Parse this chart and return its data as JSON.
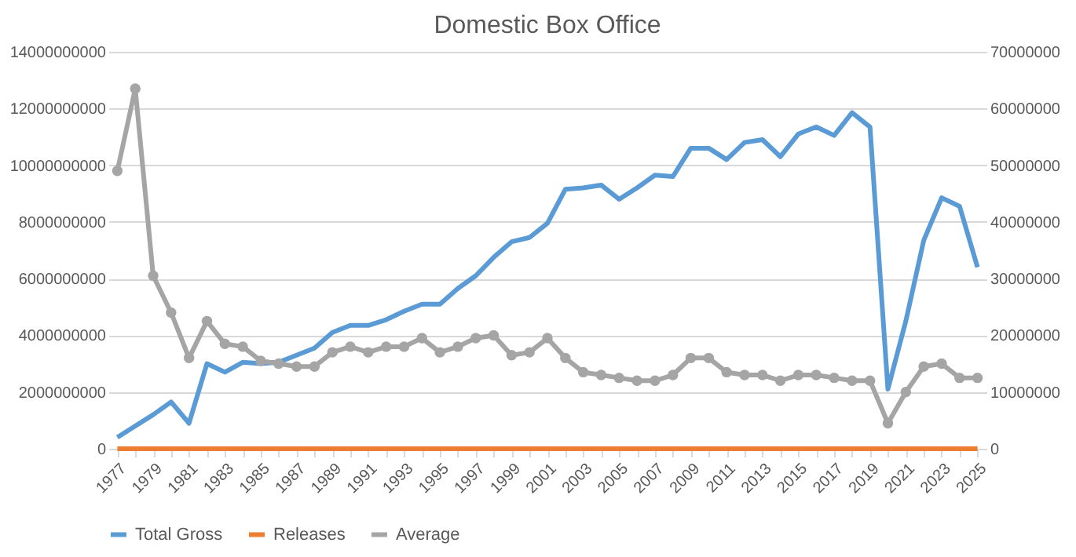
{
  "chart_data": {
    "type": "line",
    "title": "Domestic Box  Office",
    "categories": [
      "1977",
      null,
      "1979",
      null,
      "1981",
      null,
      "1983",
      null,
      "1985",
      null,
      "1987",
      null,
      "1989",
      null,
      "1991",
      null,
      "1993",
      null,
      "1995",
      null,
      "1997",
      null,
      "1999",
      null,
      "2001",
      null,
      "2003",
      null,
      "2005",
      null,
      "2007",
      null,
      "2009",
      null,
      "2011",
      null,
      "2013",
      null,
      "2015",
      null,
      "2017",
      null,
      "2019",
      null,
      "2021",
      null,
      "2023",
      null,
      "2025"
    ],
    "series": [
      {
        "name": "Total Gross",
        "color": "#5b9bd5",
        "axis": "y",
        "marker": "none",
        "values": [
          400000000,
          800000000,
          1200000000,
          1650000000,
          900000000,
          3000000000,
          2700000000,
          3050000000,
          3000000000,
          3050000000,
          3300000000,
          3550000000,
          4100000000,
          4350000000,
          4350000000,
          4550000000,
          4850000000,
          5100000000,
          5100000000,
          5650000000,
          6100000000,
          6750000000,
          7300000000,
          7450000000,
          7950000000,
          9150000000,
          9200000000,
          9300000000,
          8800000000,
          9200000000,
          9650000000,
          9600000000,
          10600000000,
          10600000000,
          10200000000,
          10800000000,
          10900000000,
          10300000000,
          11100000000,
          11350000000,
          11050000000,
          11850000000,
          11350000000,
          2100000000,
          4500000000,
          7350000000,
          8850000000,
          8550000000,
          6400000000
        ]
      },
      {
        "name": "Releases",
        "color": "#ed7d31",
        "axis": "y",
        "marker": "none",
        "values": [
          0,
          0,
          0,
          0,
          0,
          0,
          0,
          0,
          0,
          0,
          0,
          0,
          0,
          0,
          0,
          0,
          0,
          0,
          0,
          0,
          0,
          0,
          0,
          0,
          0,
          0,
          0,
          0,
          0,
          0,
          0,
          0,
          0,
          0,
          0,
          0,
          0,
          0,
          0,
          0,
          0,
          0,
          0,
          0,
          0,
          0,
          0,
          0,
          0
        ]
      },
      {
        "name": "Average",
        "color": "#a5a5a5",
        "axis": "y2",
        "marker": "circle",
        "values": [
          49000000,
          63500000,
          30500000,
          24000000,
          16000000,
          22500000,
          18500000,
          18000000,
          15500000,
          15000000,
          14500000,
          14500000,
          17000000,
          18000000,
          17000000,
          18000000,
          18000000,
          19500000,
          17000000,
          18000000,
          19500000,
          20000000,
          16500000,
          17000000,
          19500000,
          16000000,
          13500000,
          13000000,
          12500000,
          12000000,
          12000000,
          13000000,
          16000000,
          16000000,
          13500000,
          13000000,
          13000000,
          12000000,
          13000000,
          13000000,
          12500000,
          12000000,
          12000000,
          4500000,
          10000000,
          14500000,
          15000000,
          12500000,
          12500000
        ]
      }
    ],
    "ylim": [
      0,
      14000000000
    ],
    "yticks": [
      0,
      2000000000,
      4000000000,
      6000000000,
      8000000000,
      10000000000,
      12000000000,
      14000000000
    ],
    "y2lim": [
      0,
      70000000
    ],
    "y2ticks": [
      0,
      10000000,
      20000000,
      30000000,
      40000000,
      50000000,
      60000000,
      70000000
    ],
    "grid": "y",
    "legend": "bottom",
    "line_style": "solid"
  }
}
